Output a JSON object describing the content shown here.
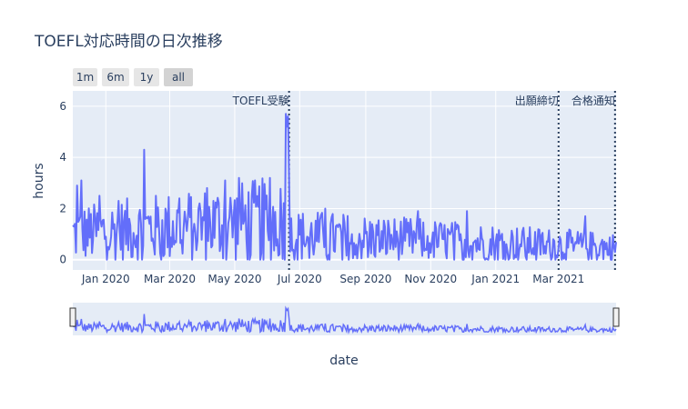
{
  "chart_data": {
    "type": "line",
    "title": "TOEFL対応時間の日次推移",
    "xlabel": "date",
    "ylabel": "hours",
    "x_range": [
      "2019-12-01",
      "2021-04-24"
    ],
    "ylim": [
      -0.4,
      6.6
    ],
    "grid": true,
    "range_buttons": [
      "1m",
      "6m",
      "1y",
      "all"
    ],
    "active_button": "all",
    "x_ticks": [
      {
        "date": "2020-01-01",
        "label": "Jan 2020"
      },
      {
        "date": "2020-03-01",
        "label": "Mar 2020"
      },
      {
        "date": "2020-05-01",
        "label": "May 2020"
      },
      {
        "date": "2020-07-01",
        "label": "Jul 2020"
      },
      {
        "date": "2020-09-01",
        "label": "Sep 2020"
      },
      {
        "date": "2020-11-01",
        "label": "Nov 2020"
      },
      {
        "date": "2021-01-01",
        "label": "Jan 2021"
      },
      {
        "date": "2021-03-01",
        "label": "Mar 2021"
      }
    ],
    "y_ticks": [
      0,
      2,
      4,
      6
    ],
    "annotations": [
      {
        "date": "2020-06-21",
        "label": "TOEFL受験"
      },
      {
        "date": "2021-03-01",
        "label": "出願締切"
      },
      {
        "date": "2021-04-23",
        "label": "合格通知"
      }
    ],
    "series": [
      {
        "color": "#636efa",
        "start": "2019-12-01",
        "end": "2021-04-24",
        "peaks": [
          {
            "date": "2019-12-05",
            "value": 2.9
          },
          {
            "date": "2019-12-09",
            "value": 3.1
          },
          {
            "date": "2019-12-26",
            "value": 2.5
          },
          {
            "date": "2020-01-13",
            "value": 2.3
          },
          {
            "date": "2020-02-06",
            "value": 4.3
          },
          {
            "date": "2020-03-10",
            "value": 2.4
          },
          {
            "date": "2020-04-05",
            "value": 2.8
          },
          {
            "date": "2020-04-22",
            "value": 3.1
          },
          {
            "date": "2020-05-05",
            "value": 3.2
          },
          {
            "date": "2020-06-03",
            "value": 3.2
          },
          {
            "date": "2020-06-18",
            "value": 5.7
          },
          {
            "date": "2020-06-19",
            "value": 5.2
          },
          {
            "date": "2020-06-20",
            "value": 5.6
          },
          {
            "date": "2020-06-21",
            "value": 3.3
          },
          {
            "date": "2020-07-25",
            "value": 2.0
          },
          {
            "date": "2020-10-20",
            "value": 1.9
          },
          {
            "date": "2020-12-05",
            "value": 1.9
          },
          {
            "date": "2021-03-26",
            "value": 1.7
          }
        ]
      }
    ]
  }
}
